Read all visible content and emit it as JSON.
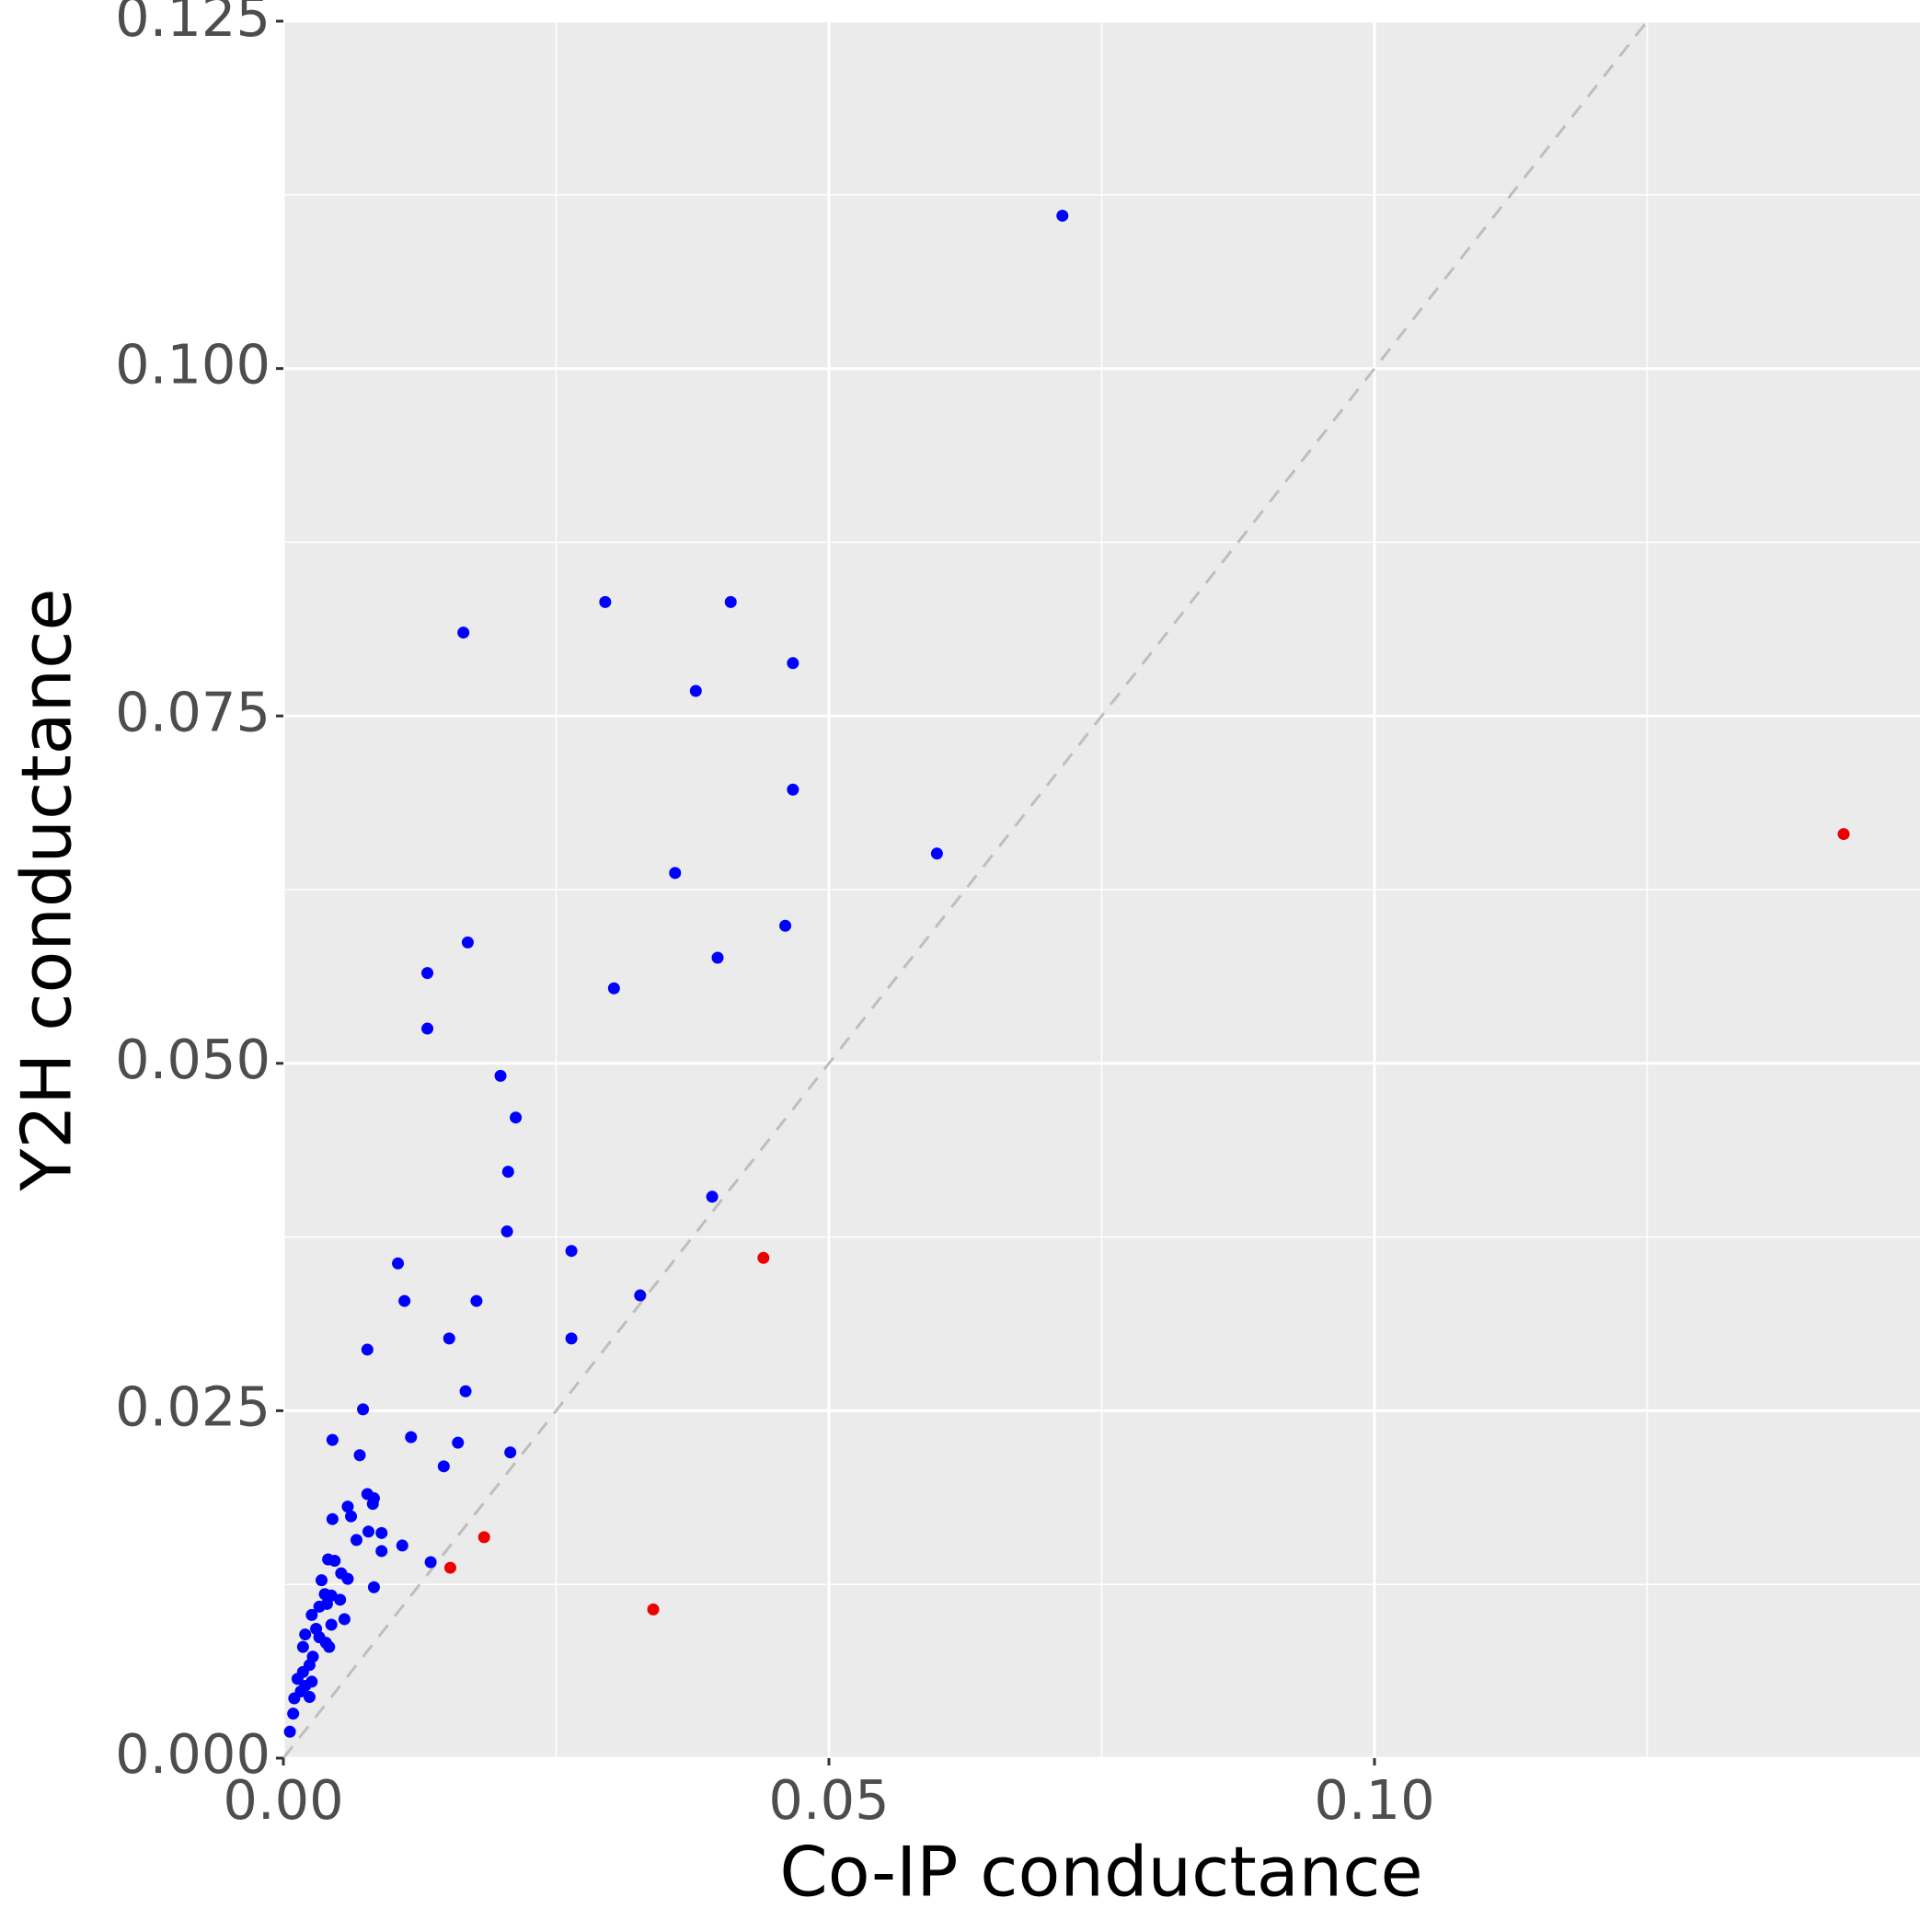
{
  "chart_data": {
    "type": "scatter",
    "x_label": "Co-IP conductance",
    "y_label": "Y2H conductance",
    "xlim": [
      0,
      0.15
    ],
    "ylim": [
      0,
      0.125
    ],
    "xticks": [
      {
        "value": 0,
        "label": "0.00"
      },
      {
        "value": 0.05,
        "label": "0.05"
      },
      {
        "value": 0.1,
        "label": "0.10"
      }
    ],
    "yticks": [
      {
        "value": 0,
        "label": "0.000"
      },
      {
        "value": 0.025,
        "label": "0.025"
      },
      {
        "value": 0.05,
        "label": "0.050"
      },
      {
        "value": 0.075,
        "label": "0.075"
      },
      {
        "value": 0.1,
        "label": "0.100"
      },
      {
        "value": 0.125,
        "label": "0.125"
      }
    ],
    "xminor": [
      0.025,
      0.075,
      0.125
    ],
    "yminor": [
      0.0125,
      0.0375,
      0.0625,
      0.0875,
      0.1125
    ],
    "grid": true,
    "diagonal": true,
    "series": [
      {
        "color": "#0000ff",
        "x": [
          0.0714,
          0.0295,
          0.041,
          0.0165,
          0.0467,
          0.0378,
          0.0467,
          0.0599,
          0.0359,
          0.046,
          0.0169,
          0.0398,
          0.0132,
          0.0303,
          0.0132,
          0.0199,
          0.0213,
          0.0206,
          0.0393,
          0.0205,
          0.0264,
          0.0105,
          0.0111,
          0.0177,
          0.0327,
          0.0152,
          0.0264,
          0.0077,
          0.0167,
          0.0073,
          0.0117,
          0.0045,
          0.016,
          0.007,
          0.0208,
          0.0147,
          0.0077,
          0.0083,
          0.0082,
          0.0059,
          0.0062,
          0.0045,
          0.0078,
          0.009,
          0.0067,
          0.0109,
          0.009,
          0.0041,
          0.0047,
          0.0135,
          0.0053,
          0.0059,
          0.0035,
          0.0083,
          0.0038,
          0.0044,
          0.0052,
          0.004,
          0.0033,
          0.0026,
          0.0056,
          0.0044,
          0.003,
          0.002,
          0.0033,
          0.0039,
          0.0042,
          0.0018,
          0.0027,
          0.0024,
          0.0018,
          0.0013,
          0.0026,
          0.002,
          0.0016,
          0.0024,
          0.001,
          0.0009,
          0.0006
        ],
        "values": [
          0.111,
          0.0832,
          0.0832,
          0.081,
          0.0788,
          0.0768,
          0.0697,
          0.0651,
          0.0637,
          0.0599,
          0.0587,
          0.0576,
          0.0565,
          0.0554,
          0.0525,
          0.0491,
          0.0461,
          0.0422,
          0.0404,
          0.0379,
          0.0365,
          0.0356,
          0.0329,
          0.0329,
          0.0333,
          0.0302,
          0.0302,
          0.0294,
          0.0264,
          0.0251,
          0.0231,
          0.0229,
          0.0227,
          0.0218,
          0.022,
          0.021,
          0.019,
          0.0187,
          0.0183,
          0.0181,
          0.0174,
          0.0172,
          0.0163,
          0.0162,
          0.0157,
          0.0153,
          0.0149,
          0.0143,
          0.0142,
          0.0141,
          0.0133,
          0.0129,
          0.0128,
          0.0123,
          0.0118,
          0.0117,
          0.0114,
          0.0111,
          0.0109,
          0.0103,
          0.01,
          0.0096,
          0.0093,
          0.0089,
          0.0087,
          0.0083,
          0.008,
          0.008,
          0.0073,
          0.0067,
          0.0062,
          0.0057,
          0.0055,
          0.0052,
          0.0048,
          0.0044,
          0.0043,
          0.0032,
          0.0019
        ]
      },
      {
        "color": "#ee0000",
        "x": [
          0.143,
          0.044,
          0.0184,
          0.0153,
          0.0339
        ],
        "values": [
          0.0665,
          0.036,
          0.0159,
          0.0137,
          0.0107
        ]
      }
    ]
  }
}
